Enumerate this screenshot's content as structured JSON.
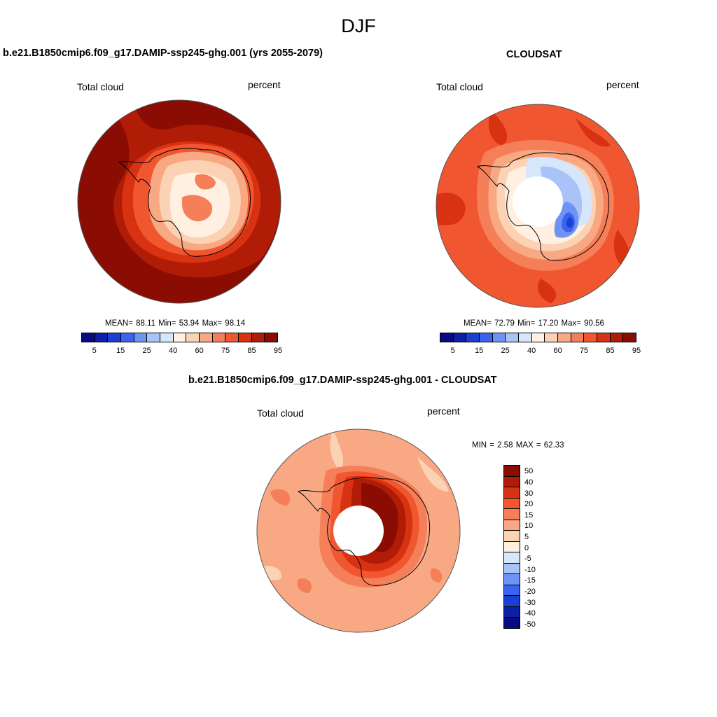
{
  "season": "DJF",
  "panel_model": {
    "title": "b.e21.B1850cmip6.f09_g17.DAMIP-ssp245-ghg.001 (yrs 2055-2079)",
    "variable": "Total cloud",
    "units": "percent",
    "stats": "MEAN=  88.11  Min=  53.94  Max=  98.14"
  },
  "panel_obs": {
    "title": "CLOUDSAT",
    "variable": "Total cloud",
    "units": "percent",
    "stats": "MEAN=  72.79  Min=  17.20  Max=  90.56"
  },
  "panel_diff": {
    "title": "b.e21.B1850cmip6.f09_g17.DAMIP-ssp245-ghg.001 - CLOUDSAT",
    "variable": "Total cloud",
    "units": "percent",
    "stats": "MIN =   2.58 MAX =  62.33"
  },
  "colorbar_abs": {
    "colors": [
      "#0a0a82",
      "#0d1ea8",
      "#1a3fd2",
      "#3a64f0",
      "#6f93f5",
      "#a9c2f7",
      "#d6e6fb",
      "#fff0e1",
      "#fcd2b4",
      "#f8a983",
      "#f57f58",
      "#f0562f",
      "#d83212",
      "#b01c05",
      "#8a0c02"
    ],
    "tick_labels": [
      "5",
      "15",
      "25",
      "40",
      "60",
      "75",
      "85",
      "95"
    ]
  },
  "colorbar_diff": {
    "colors": [
      "#8a0c02",
      "#b01c05",
      "#d83212",
      "#f0562f",
      "#f57f58",
      "#f8a983",
      "#fcd2b4",
      "#fff0e1",
      "#d6e6fb",
      "#a9c2f7",
      "#6f93f5",
      "#3a64f0",
      "#1a3fd2",
      "#0d1ea8",
      "#0a0a82"
    ],
    "tick_labels": [
      "50",
      "40",
      "30",
      "20",
      "15",
      "10",
      "5",
      "0",
      "-5",
      "-10",
      "-15",
      "-20",
      "-30",
      "-40",
      "-50"
    ]
  }
}
